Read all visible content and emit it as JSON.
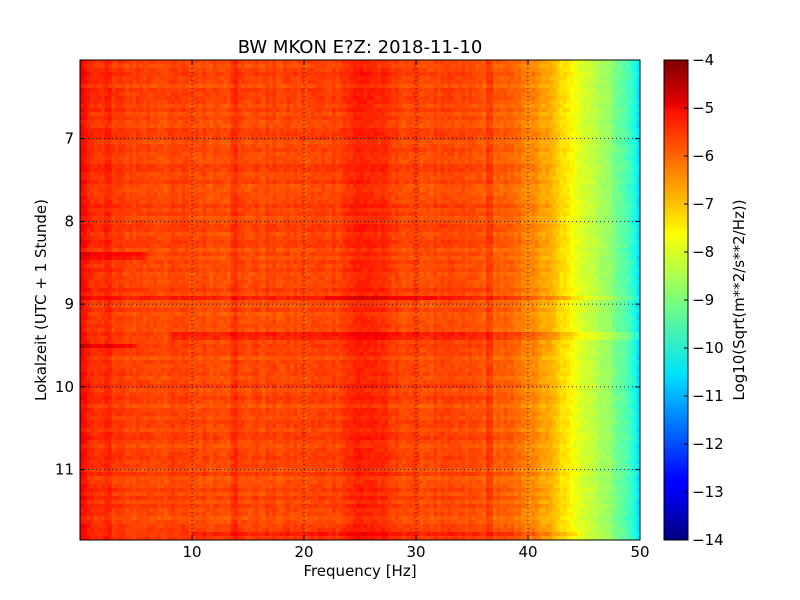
{
  "chart_data": {
    "type": "heatmap",
    "title": "BW MKON E?Z: 2018-11-10",
    "xlabel": "Frequency [Hz]",
    "ylabel": "Lokalzeit (UTC + 1 Stunde)",
    "xlim": [
      0,
      50
    ],
    "ylim": [
      11.85,
      6.05
    ],
    "y_inverted": true,
    "xticks": [
      10,
      20,
      30,
      40,
      50
    ],
    "xtick_labels": [
      "10",
      "20",
      "30",
      "40",
      "50"
    ],
    "yticks": [
      7,
      8,
      9,
      10,
      11
    ],
    "ytick_labels": [
      "7",
      "8",
      "9",
      "10",
      "11"
    ],
    "grid": true,
    "colormap": "jet",
    "colorbar": {
      "label": "Log10(Sqrt(m**2/s**2/Hz))",
      "range": [
        -14,
        -4
      ],
      "ticks": [
        -4,
        -5,
        -6,
        -7,
        -8,
        -9,
        -10,
        -11,
        -12,
        -13,
        -14
      ],
      "tick_labels": [
        "−4",
        "−5",
        "−6",
        "−7",
        "−8",
        "−9",
        "−10",
        "−11",
        "−12",
        "−13",
        "−14"
      ]
    },
    "frequency_profile": {
      "frequency_hz": [
        0,
        0.5,
        2,
        5,
        10,
        20,
        25,
        30,
        35,
        38,
        40,
        42,
        43,
        44,
        45,
        46,
        47,
        48,
        49,
        49.5,
        50
      ],
      "value": [
        -5.2,
        -5.5,
        -5.8,
        -5.9,
        -5.95,
        -5.95,
        -5.8,
        -5.95,
        -6.0,
        -6.2,
        -6.5,
        -7.0,
        -7.4,
        -7.8,
        -8.1,
        -8.4,
        -8.7,
        -9.1,
        -9.6,
        -10.0,
        -10.6
      ]
    },
    "bright_band_frequency_hz": [
      23,
      28
    ],
    "bright_band_offset": 0.25,
    "line_features": [
      {
        "frequency_hz": 13.8,
        "offset": 0.25
      },
      {
        "frequency_hz": 2.6,
        "offset": 0.2
      },
      {
        "frequency_hz": 36.5,
        "offset": 0.2
      }
    ],
    "time_events": [
      {
        "time_h": 8.41,
        "frequency_hz": [
          0,
          6
        ],
        "offset": 0.5
      },
      {
        "time_h": 8.93,
        "frequency_hz": [
          0,
          45
        ],
        "offset": 0.55
      },
      {
        "time_h": 8.93,
        "frequency_hz": [
          45,
          50
        ],
        "offset": 0.35
      },
      {
        "time_h": 8.93,
        "frequency_hz": [
          22,
          32
        ],
        "offset": 0.3
      },
      {
        "time_h": 9.38,
        "frequency_hz": [
          8,
          50
        ],
        "offset": 0.35
      },
      {
        "time_h": 9.5,
        "frequency_hz": [
          0,
          5
        ],
        "offset": 0.5
      },
      {
        "time_h": 11.78,
        "frequency_hz": [
          10,
          45
        ],
        "offset": 0.35
      }
    ]
  }
}
